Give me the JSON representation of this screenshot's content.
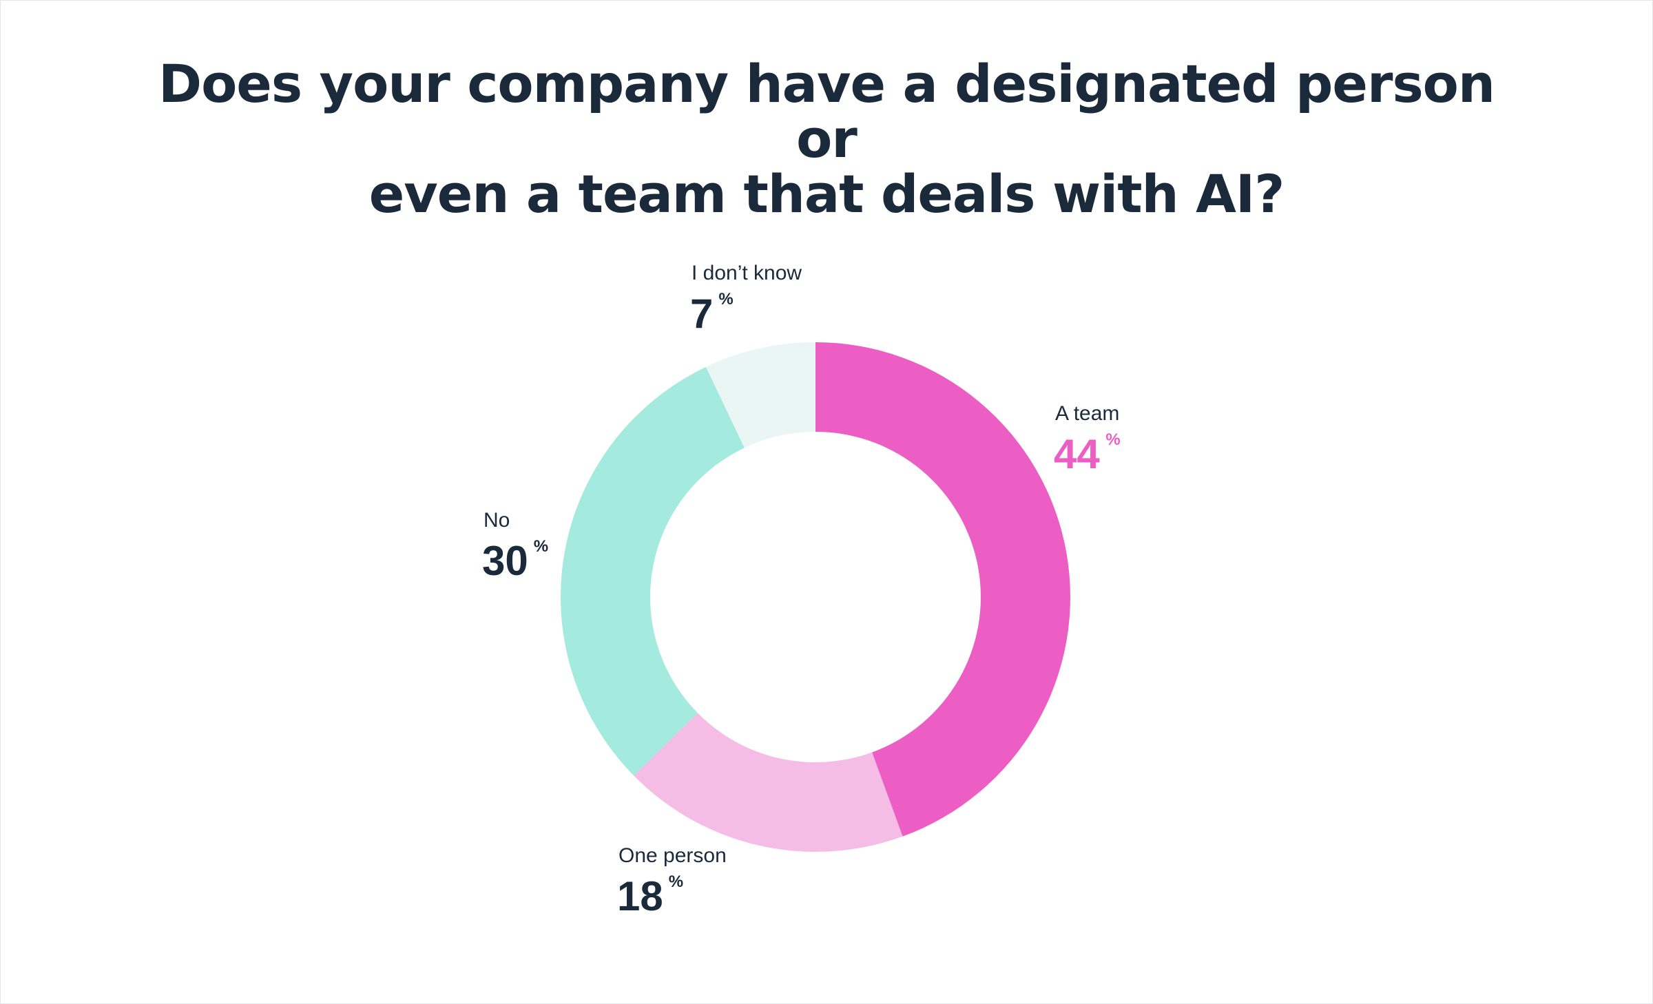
{
  "title_lines": [
    "Does your company have a designated person or",
    "even a team that deals with AI?"
  ],
  "percent_symbol": "%",
  "chart_data": {
    "type": "pie",
    "donut": true,
    "title": "Does your company have a designated person or even a team that deals with AI?",
    "categories": [
      "A team",
      "One person",
      "No",
      "I don’t know"
    ],
    "values": [
      44,
      18,
      30,
      7
    ],
    "unit": "%",
    "colors": [
      "#ec5ec4",
      "#f5bde6",
      "#a5eadf",
      "#e9f6f3"
    ],
    "value_colors": [
      "#ec5ec4",
      "#1b2a3a",
      "#1b2a3a",
      "#1b2a3a"
    ]
  }
}
